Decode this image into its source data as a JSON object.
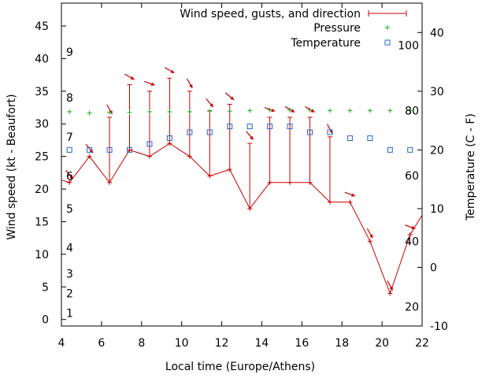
{
  "chart_data": {
    "type": "line",
    "xlabel": "Local time (Europe/Athens)",
    "ylabel": "Wind speed (kt - Beaufort)",
    "y2label": "Temperature (C - F)",
    "xlim": [
      4,
      22
    ],
    "ylim": [
      -1,
      48.5
    ],
    "y2lim": [
      -10,
      45
    ],
    "xticks": [
      4,
      6,
      8,
      10,
      12,
      14,
      16,
      18,
      20,
      22
    ],
    "yticks": [
      0,
      5,
      10,
      15,
      20,
      25,
      30,
      35,
      40,
      45
    ],
    "y2ticks": [
      -10,
      0,
      10,
      20,
      30,
      40
    ],
    "fahrenheit_ticks": [
      {
        "label": "20",
        "c": -6.7
      },
      {
        "label": "40",
        "c": 4.4
      },
      {
        "label": "60",
        "c": 15.6
      },
      {
        "label": "80",
        "c": 26.7
      },
      {
        "label": "100",
        "c": 37.8
      }
    ],
    "beaufort_ticks": [
      {
        "label": "1",
        "kt": 1
      },
      {
        "label": "2",
        "kt": 4
      },
      {
        "label": "3",
        "kt": 7
      },
      {
        "label": "4",
        "kt": 11
      },
      {
        "label": "5",
        "kt": 17
      },
      {
        "label": "6",
        "kt": 22
      },
      {
        "label": "7",
        "kt": 28
      },
      {
        "label": "8",
        "kt": 34
      },
      {
        "label": "9",
        "kt": 41
      }
    ],
    "legend": {
      "position": "top-right",
      "entries": [
        "Wind speed, gusts, and direction",
        "Pressure",
        "Temperature"
      ]
    },
    "colors": {
      "wind": "#cc0000",
      "pressure": "#22aa22",
      "temperature": "#2266cc",
      "axis": "#000000"
    },
    "series": [
      {
        "name": "Wind speed, gusts, and direction",
        "x": [
          3.4,
          4.4,
          5.4,
          6.4,
          7.4,
          8.4,
          9.4,
          10.4,
          11.4,
          12.4,
          13.4,
          14.4,
          15.4,
          16.4,
          17.4,
          18.4,
          19.4,
          20.4,
          21.4,
          22.4
        ],
        "speed": [
          22,
          21,
          25,
          21,
          26,
          25,
          27,
          25,
          22,
          23,
          17,
          21,
          21,
          21,
          18,
          18,
          12,
          4,
          13,
          18
        ],
        "gust": [
          null,
          21,
          25,
          31,
          36,
          35,
          37,
          35,
          32,
          33,
          27,
          31,
          31,
          31,
          28,
          18,
          12,
          4,
          13,
          null
        ],
        "direction_deg": [
          null,
          320,
          320,
          330,
          300,
          290,
          300,
          330,
          320,
          310,
          320,
          290,
          300,
          300,
          330,
          290,
          330,
          330,
          290,
          290
        ]
      },
      {
        "name": "Pressure",
        "x": [
          4.4,
          5.4,
          6.4,
          7.4,
          8.4,
          9.4,
          10.4,
          11.4,
          12.4,
          13.4,
          14.4,
          15.4,
          16.4,
          17.4,
          18.4,
          19.4,
          20.4,
          21.4
        ],
        "values": [
          26.5,
          26.3,
          26.4,
          26.4,
          26.5,
          26.5,
          26.5,
          26.6,
          26.6,
          26.7,
          26.8,
          26.8,
          26.8,
          26.7,
          26.7,
          26.7,
          26.7,
          26.7
        ]
      },
      {
        "name": "Temperature",
        "x": [
          4.4,
          5.4,
          6.4,
          7.4,
          8.4,
          9.4,
          10.4,
          11.4,
          12.4,
          13.4,
          14.4,
          15.4,
          16.4,
          17.4,
          18.4,
          19.4,
          20.4,
          21.4
        ],
        "values": [
          20,
          20,
          20,
          20,
          21,
          22,
          23,
          23,
          24,
          24,
          24,
          24,
          23,
          23,
          22,
          22,
          20,
          20
        ]
      }
    ]
  }
}
